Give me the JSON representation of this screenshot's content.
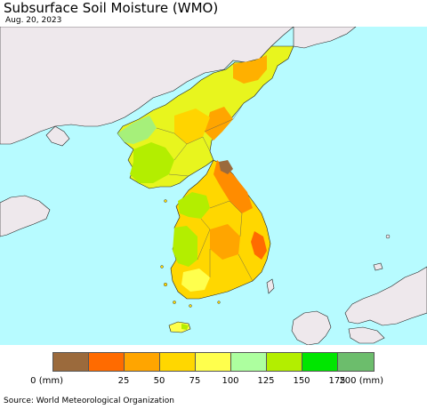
{
  "title": "Subsurface Soil Moisture (WMO)",
  "date": "Aug. 20, 2023",
  "legend": {
    "colors": [
      "#9b6a3c",
      "#ff6b00",
      "#ffa500",
      "#ffd700",
      "#ffff4d",
      "#adff9f",
      "#b3ee00",
      "#00e600",
      "#6cbd6c"
    ],
    "ticks": [
      "0 (mm)",
      "25",
      "50",
      "75",
      "100",
      "125",
      "150",
      "175",
      "200 (mm)"
    ]
  },
  "source": "Source: World Meteorological Organization"
}
